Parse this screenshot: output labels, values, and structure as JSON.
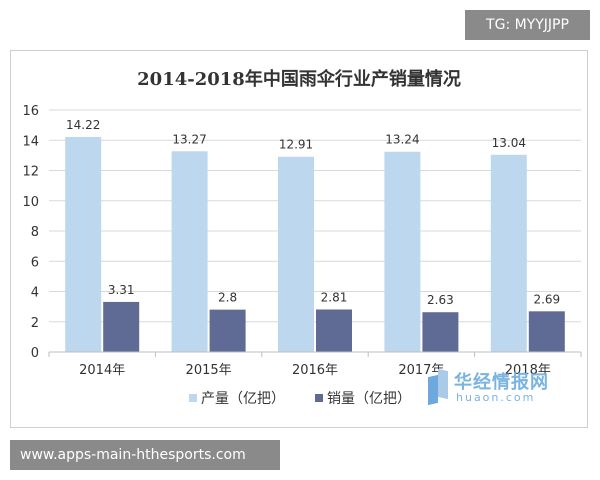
{
  "watermark_top": "TG: MYYJJPP",
  "footer_text": "www.apps-main-hthesports.com",
  "brand": {
    "name": "华经情报网",
    "url": "huaon.com"
  },
  "colors": {
    "production": "#bdd7ee",
    "sales": "#5f6b94",
    "grid": "#d9d9d9",
    "axis_text": "#333333"
  },
  "chart_data": {
    "type": "bar",
    "title": "2014-2018年中国雨伞行业产销量情况",
    "categories": [
      "2014年",
      "2015年",
      "2016年",
      "2017年",
      "2018年"
    ],
    "series": [
      {
        "name": "产量（亿把）",
        "values": [
          14.22,
          13.27,
          12.91,
          13.24,
          13.04
        ],
        "labels": [
          "14.22",
          "13.27",
          "12.91",
          "13.24",
          "13.04"
        ]
      },
      {
        "name": "销量（亿把）",
        "values": [
          3.31,
          2.8,
          2.81,
          2.63,
          2.69
        ],
        "labels": [
          "3.31",
          "2.8",
          "2.81",
          "2.63",
          "2.69"
        ]
      }
    ],
    "ylim": [
      0,
      16
    ],
    "yticks": [
      0,
      2,
      4,
      6,
      8,
      10,
      12,
      14,
      16
    ],
    "xlabel": "",
    "ylabel": "",
    "grid": true,
    "legend": "bottom"
  }
}
